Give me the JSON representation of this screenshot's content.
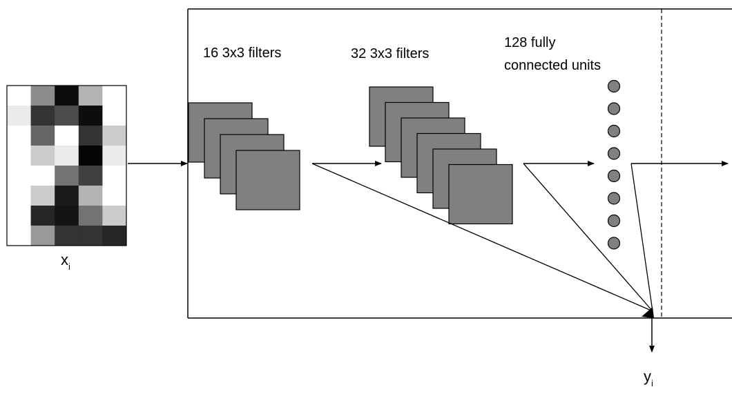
{
  "input": {
    "symbol": "x",
    "subscript": "i",
    "pixel_grid": [
      [
        0.0,
        0.45,
        0.95,
        0.3,
        0.0
      ],
      [
        0.08,
        0.8,
        0.7,
        0.95,
        0.0
      ],
      [
        0.0,
        0.6,
        0.0,
        0.8,
        0.2
      ],
      [
        0.0,
        0.2,
        0.08,
        0.98,
        0.08
      ],
      [
        0.0,
        0.0,
        0.55,
        0.75,
        0.0
      ],
      [
        0.0,
        0.2,
        0.9,
        0.3,
        0.0
      ],
      [
        0.0,
        0.85,
        0.92,
        0.55,
        0.2
      ],
      [
        0.0,
        0.4,
        0.8,
        0.8,
        0.85
      ]
    ]
  },
  "layers": {
    "conv1": {
      "label": "16 3x3 filters",
      "stack_count": 4
    },
    "conv2": {
      "label": "32 3x3 filters",
      "stack_count": 6
    },
    "fc": {
      "label_line1": "128 fully",
      "label_line2": "connected units",
      "unit_count": 8
    }
  },
  "output": {
    "symbol": "y",
    "subscript": "i"
  },
  "colors": {
    "filter_fill": "#808080",
    "unit_fill": "#808080",
    "line": "#000000"
  }
}
